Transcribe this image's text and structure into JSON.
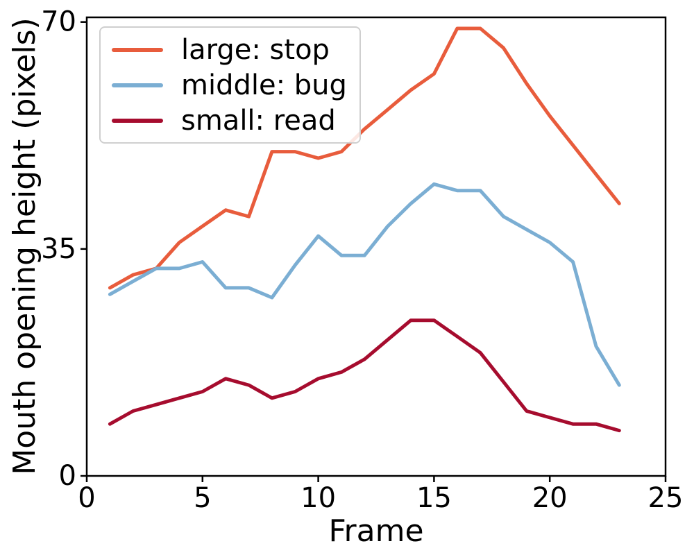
{
  "figure": {
    "background": "#ffffff",
    "text_color": "#000000",
    "spine_color": "#000000"
  },
  "chart_data": {
    "type": "line",
    "title": "",
    "xlabel": "Frame",
    "ylabel": "Mouth opening height (pixels)",
    "x": [
      1,
      2,
      3,
      4,
      5,
      6,
      7,
      8,
      9,
      10,
      11,
      12,
      13,
      14,
      15,
      16,
      17,
      18,
      19,
      20,
      21,
      22,
      23
    ],
    "series": [
      {
        "name": "large: stop",
        "color": "#E85C3C",
        "values": [
          29,
          31,
          32,
          36,
          38.5,
          41,
          40,
          50,
          50,
          49,
          50,
          53.5,
          56.5,
          59.5,
          62,
          69,
          69,
          66,
          60.5,
          55.5,
          51,
          46.5,
          42
        ]
      },
      {
        "name": "middle: bug",
        "color": "#7BAED3",
        "values": [
          28,
          30,
          32,
          32,
          33,
          29,
          29,
          27.5,
          32.5,
          37,
          34,
          34,
          38.5,
          42,
          45,
          44,
          44,
          40,
          38,
          36,
          33,
          20,
          14
        ]
      },
      {
        "name": "small: read",
        "color": "#A60C2E",
        "values": [
          8,
          10,
          11,
          12,
          13,
          15,
          14,
          12,
          13,
          15,
          16,
          18,
          21,
          24,
          24,
          21.5,
          19,
          14.5,
          10,
          9,
          8,
          8,
          7
        ]
      }
    ],
    "xlim": [
      0,
      25
    ],
    "ylim": [
      0,
      70
    ],
    "x_ticks": [
      0,
      5,
      10,
      15,
      20,
      25
    ],
    "y_ticks": [
      0,
      35,
      70
    ],
    "grid": false,
    "legend_position": "upper left"
  }
}
